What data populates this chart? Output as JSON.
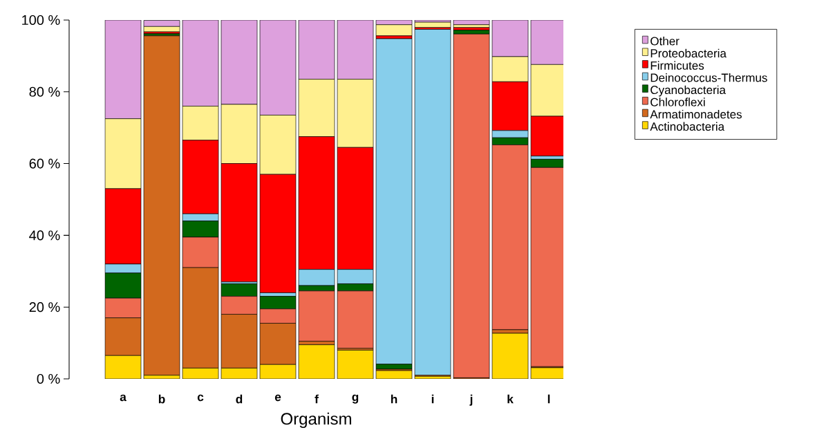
{
  "chart_data": {
    "type": "bar",
    "stacked": true,
    "xlabel": "Organism",
    "categories": [
      "a",
      "b",
      "c",
      "d",
      "e",
      "f",
      "g",
      "h",
      "i",
      "j",
      "k",
      "l"
    ],
    "series": [
      {
        "name": "Actinobacteria",
        "color": "#ffd700",
        "values": [
          6.5,
          1,
          3,
          3,
          4,
          9.5,
          8,
          2.3,
          0.7,
          0,
          12.7,
          3.1
        ]
      },
      {
        "name": "Armatimonadetes",
        "color": "#d2691e",
        "values": [
          10.5,
          94.6,
          28,
          15,
          11.5,
          1,
          0.5,
          0.4,
          0.3,
          0.3,
          1.0,
          0.3
        ]
      },
      {
        "name": "Chloroflexi",
        "color": "#ee6a50",
        "values": [
          5.5,
          null,
          8.5,
          5,
          4,
          14,
          16,
          0,
          0,
          95.8,
          51.5,
          55.5
        ]
      },
      {
        "name": "Cyanobacteria",
        "color": "#006400",
        "values": [
          7,
          0.6,
          4.5,
          3.5,
          3.5,
          1.5,
          2,
          1.4,
          0,
          1.1,
          2.0,
          2.3
        ]
      },
      {
        "name": "Deinococcus-Thermus",
        "color": "#87ceeb",
        "values": [
          2.5,
          0,
          2,
          0.5,
          1,
          4.5,
          4,
          90.7,
          96.4,
          0,
          2.0,
          0.9
        ]
      },
      {
        "name": "Firmicutes",
        "color": "#ff0000",
        "values": [
          21,
          0.5,
          20.5,
          33,
          33,
          37,
          34,
          0.8,
          0.5,
          0.7,
          13.6,
          11.1
        ]
      },
      {
        "name": "Proteobacteria",
        "color": "#fff08f",
        "values": [
          19.5,
          1.5,
          9.5,
          16.5,
          16.5,
          16,
          19,
          3.1,
          1.5,
          0.8,
          7.0,
          14.4
        ]
      },
      {
        "name": "Other",
        "color": "#dda0dd",
        "values": [
          27.5,
          1.7,
          24,
          23.5,
          26.5,
          16.5,
          16.5,
          1.3,
          0.6,
          1.3,
          10.2,
          12.4
        ]
      }
    ],
    "ylim": [
      0,
      100
    ],
    "yticks": [
      {
        "value": 0,
        "label": "0 %"
      },
      {
        "value": 20,
        "label": "20 %"
      },
      {
        "value": 40,
        "label": "40 %"
      },
      {
        "value": 60,
        "label": "60 %"
      },
      {
        "value": 80,
        "label": "80 %"
      },
      {
        "value": 100,
        "label": "100 %"
      }
    ],
    "grid": false,
    "legend": "top right"
  }
}
